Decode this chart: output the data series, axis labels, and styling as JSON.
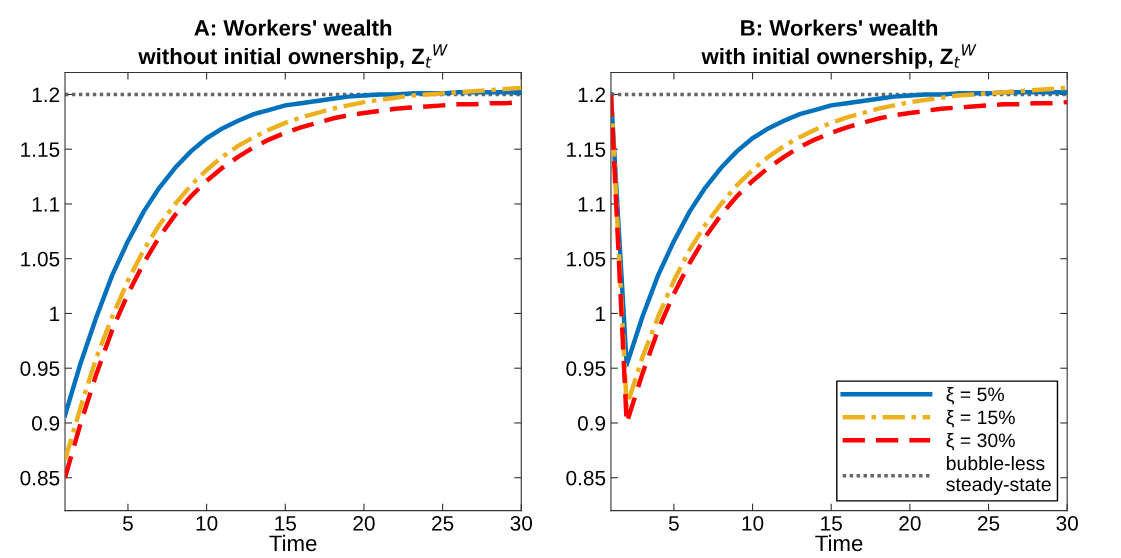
{
  "chart_data": [
    {
      "type": "line",
      "title": "A: Workers' wealth\nwithout initial ownership, Z$_{t}$$^{W}$",
      "xlabel": "Time",
      "xlim": [
        1,
        30
      ],
      "xticks": [
        5,
        10,
        15,
        20,
        25,
        30
      ],
      "ylim": [
        0.82,
        1.22
      ],
      "yticks": [
        0.85,
        0.9,
        0.95,
        1,
        1.05,
        1.1,
        1.15,
        1.2
      ],
      "grid": false,
      "legend": false,
      "x": [
        1,
        2,
        3,
        4,
        5,
        6,
        7,
        8,
        9,
        10,
        11,
        12,
        13,
        14,
        15,
        16,
        17,
        18,
        19,
        20,
        21,
        22,
        23,
        24,
        25,
        26,
        27,
        28,
        29,
        30
      ],
      "series": [
        {
          "color": "#0072bd",
          "line_style": "solid",
          "values": [
            0.907,
            0.955,
            0.997,
            1.035,
            1.066,
            1.093,
            1.115,
            1.133,
            1.148,
            1.16,
            1.169,
            1.176,
            1.182,
            1.186,
            1.19,
            1.192,
            1.194,
            1.196,
            1.198,
            1.199,
            1.2,
            1.2,
            1.201,
            1.201,
            1.201,
            1.202,
            1.202,
            1.202,
            1.202,
            1.202
          ]
        },
        {
          "color": "#edb120",
          "line_style": "dashdot",
          "values": [
            0.866,
            0.915,
            0.96,
            0.997,
            1.03,
            1.058,
            1.081,
            1.1,
            1.117,
            1.131,
            1.143,
            1.153,
            1.161,
            1.168,
            1.174,
            1.179,
            1.183,
            1.187,
            1.19,
            1.193,
            1.195,
            1.197,
            1.199,
            1.2,
            1.201,
            1.202,
            1.203,
            1.204,
            1.205,
            1.206
          ]
        },
        {
          "color": "#ff0000",
          "line_style": "dashed",
          "values": [
            0.85,
            0.9,
            0.945,
            0.985,
            1.018,
            1.046,
            1.07,
            1.09,
            1.107,
            1.121,
            1.133,
            1.143,
            1.152,
            1.159,
            1.165,
            1.17,
            1.174,
            1.178,
            1.181,
            1.183,
            1.185,
            1.187,
            1.188,
            1.189,
            1.19,
            1.191,
            1.191,
            1.192,
            1.192,
            1.193
          ]
        }
      ],
      "ref_lines": [
        {
          "axis": "y",
          "value": 1.2,
          "color": "#666666",
          "line_style": "dotted"
        }
      ]
    },
    {
      "type": "line",
      "title": "B: Workers' wealth\nwith initial ownership, Z$_{t}$$^{W}$",
      "xlabel": "Time",
      "xlim": [
        1,
        30
      ],
      "xticks": [
        5,
        10,
        15,
        20,
        25,
        30
      ],
      "ylim": [
        0.82,
        1.22
      ],
      "yticks": [
        0.85,
        0.9,
        0.95,
        1,
        1.05,
        1.1,
        1.15,
        1.2
      ],
      "grid": false,
      "legend": "bottom right",
      "x": [
        1,
        2,
        3,
        4,
        5,
        6,
        7,
        8,
        9,
        10,
        11,
        12,
        13,
        14,
        15,
        16,
        17,
        18,
        19,
        20,
        21,
        22,
        23,
        24,
        25,
        26,
        27,
        28,
        29,
        30
      ],
      "series": [
        {
          "name": "ξ = 5%",
          "color": "#0072bd",
          "line_style": "solid",
          "values": [
            1.2,
            0.953,
            0.997,
            1.035,
            1.066,
            1.093,
            1.115,
            1.133,
            1.148,
            1.16,
            1.169,
            1.176,
            1.182,
            1.186,
            1.19,
            1.192,
            1.194,
            1.196,
            1.198,
            1.199,
            1.2,
            1.2,
            1.201,
            1.201,
            1.201,
            1.202,
            1.202,
            1.202,
            1.202,
            1.202
          ]
        },
        {
          "name": "ξ = 15%",
          "color": "#edb120",
          "line_style": "dashdot",
          "values": [
            1.2,
            0.915,
            0.96,
            0.997,
            1.03,
            1.058,
            1.081,
            1.1,
            1.117,
            1.131,
            1.143,
            1.153,
            1.161,
            1.168,
            1.174,
            1.179,
            1.183,
            1.187,
            1.19,
            1.193,
            1.195,
            1.197,
            1.199,
            1.2,
            1.201,
            1.202,
            1.203,
            1.204,
            1.205,
            1.206
          ]
        },
        {
          "name": "ξ = 30%",
          "color": "#ff0000",
          "line_style": "dashed",
          "values": [
            1.2,
            0.9,
            0.945,
            0.985,
            1.018,
            1.046,
            1.07,
            1.09,
            1.107,
            1.121,
            1.133,
            1.143,
            1.152,
            1.159,
            1.165,
            1.17,
            1.174,
            1.178,
            1.181,
            1.183,
            1.185,
            1.187,
            1.188,
            1.189,
            1.19,
            1.191,
            1.191,
            1.192,
            1.192,
            1.193
          ]
        }
      ],
      "ref_lines": [
        {
          "axis": "y",
          "value": 1.2,
          "label": "bubble-less\nsteady-state",
          "color": "#666666",
          "line_style": "dotted"
        }
      ]
    }
  ]
}
